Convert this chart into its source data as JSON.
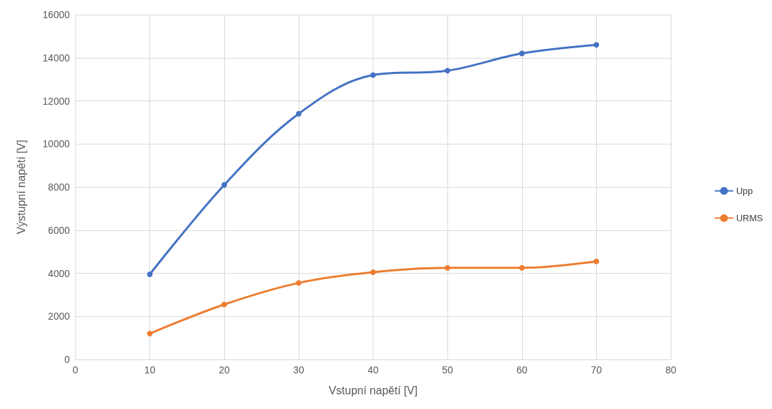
{
  "chart_data": {
    "type": "line",
    "xlabel": "Vstupní napětí [V]",
    "ylabel": "Výstupní napětí [V]",
    "x": [
      10,
      20,
      30,
      40,
      50,
      60,
      70
    ],
    "series": [
      {
        "name": "Upp",
        "color": "#4472c4",
        "values": [
          3950,
          8100,
          11400,
          13200,
          13400,
          14200,
          14600
        ]
      },
      {
        "name": "URMS",
        "color": "#ed7d31",
        "values": [
          1200,
          2550,
          3550,
          4050,
          4250,
          4250,
          4550
        ]
      }
    ],
    "xlim": [
      0,
      80
    ],
    "xticks": [
      0,
      10,
      20,
      30,
      40,
      50,
      60,
      70,
      80
    ],
    "ylim": [
      0,
      16000
    ],
    "yticks": [
      0,
      2000,
      4000,
      6000,
      8000,
      10000,
      12000,
      14000,
      16000
    ],
    "grid": true,
    "legend": "right",
    "marker": "circle",
    "line_style": "solid"
  }
}
